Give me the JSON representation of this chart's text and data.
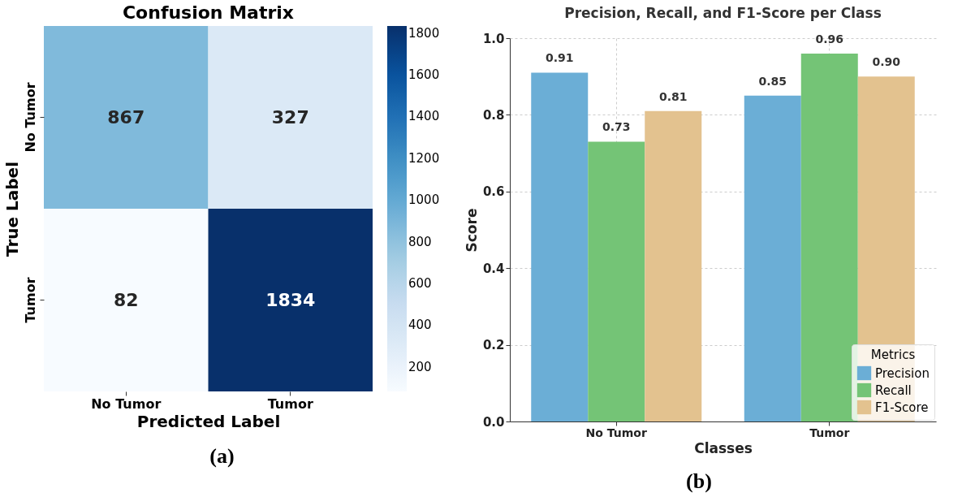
{
  "chart_data": [
    {
      "type": "heatmap",
      "title": "Confusion Matrix",
      "xlabel": "Predicted Label",
      "ylabel": "True Label",
      "categories": [
        "No Tumor",
        "Tumor"
      ],
      "y_categories": [
        "No Tumor",
        "Tumor"
      ],
      "cells": [
        [
          867,
          327
        ],
        [
          82,
          1834
        ]
      ],
      "clim": [
        82,
        1834
      ],
      "cticks": [
        200,
        400,
        600,
        800,
        1000,
        1200,
        1400,
        1600,
        1800
      ],
      "data_labels": true,
      "annotations": [
        "(a)"
      ]
    },
    {
      "type": "bar",
      "title": "Precision, Recall, and F1-Score per Class",
      "xlabel": "Classes",
      "ylabel": "Score",
      "legend_title": "Metrics",
      "categories": [
        "No Tumor",
        "Tumor"
      ],
      "series": [
        {
          "name": "Precision",
          "color": "#6baed6",
          "values": [
            0.91,
            0.85
          ],
          "value_labels": [
            "0.91",
            "0.85"
          ]
        },
        {
          "name": "Recall",
          "color": "#74c476",
          "values": [
            0.73,
            0.96
          ],
          "value_labels": [
            "0.73",
            "0.96"
          ]
        },
        {
          "name": "F1-Score",
          "color": "#e3c28f",
          "values": [
            0.81,
            0.9
          ],
          "value_labels": [
            "0.81",
            "0.90"
          ]
        }
      ],
      "ylim": [
        0,
        1.0
      ],
      "yticks": [
        {
          "value": 0,
          "label": "0.0"
        },
        0.2,
        0.4,
        0.6,
        0.8,
        {
          "value": 1.0,
          "label": "1.0"
        }
      ],
      "grid": true,
      "legend": "bottom right",
      "annotations": [
        "(b)"
      ]
    }
  ]
}
